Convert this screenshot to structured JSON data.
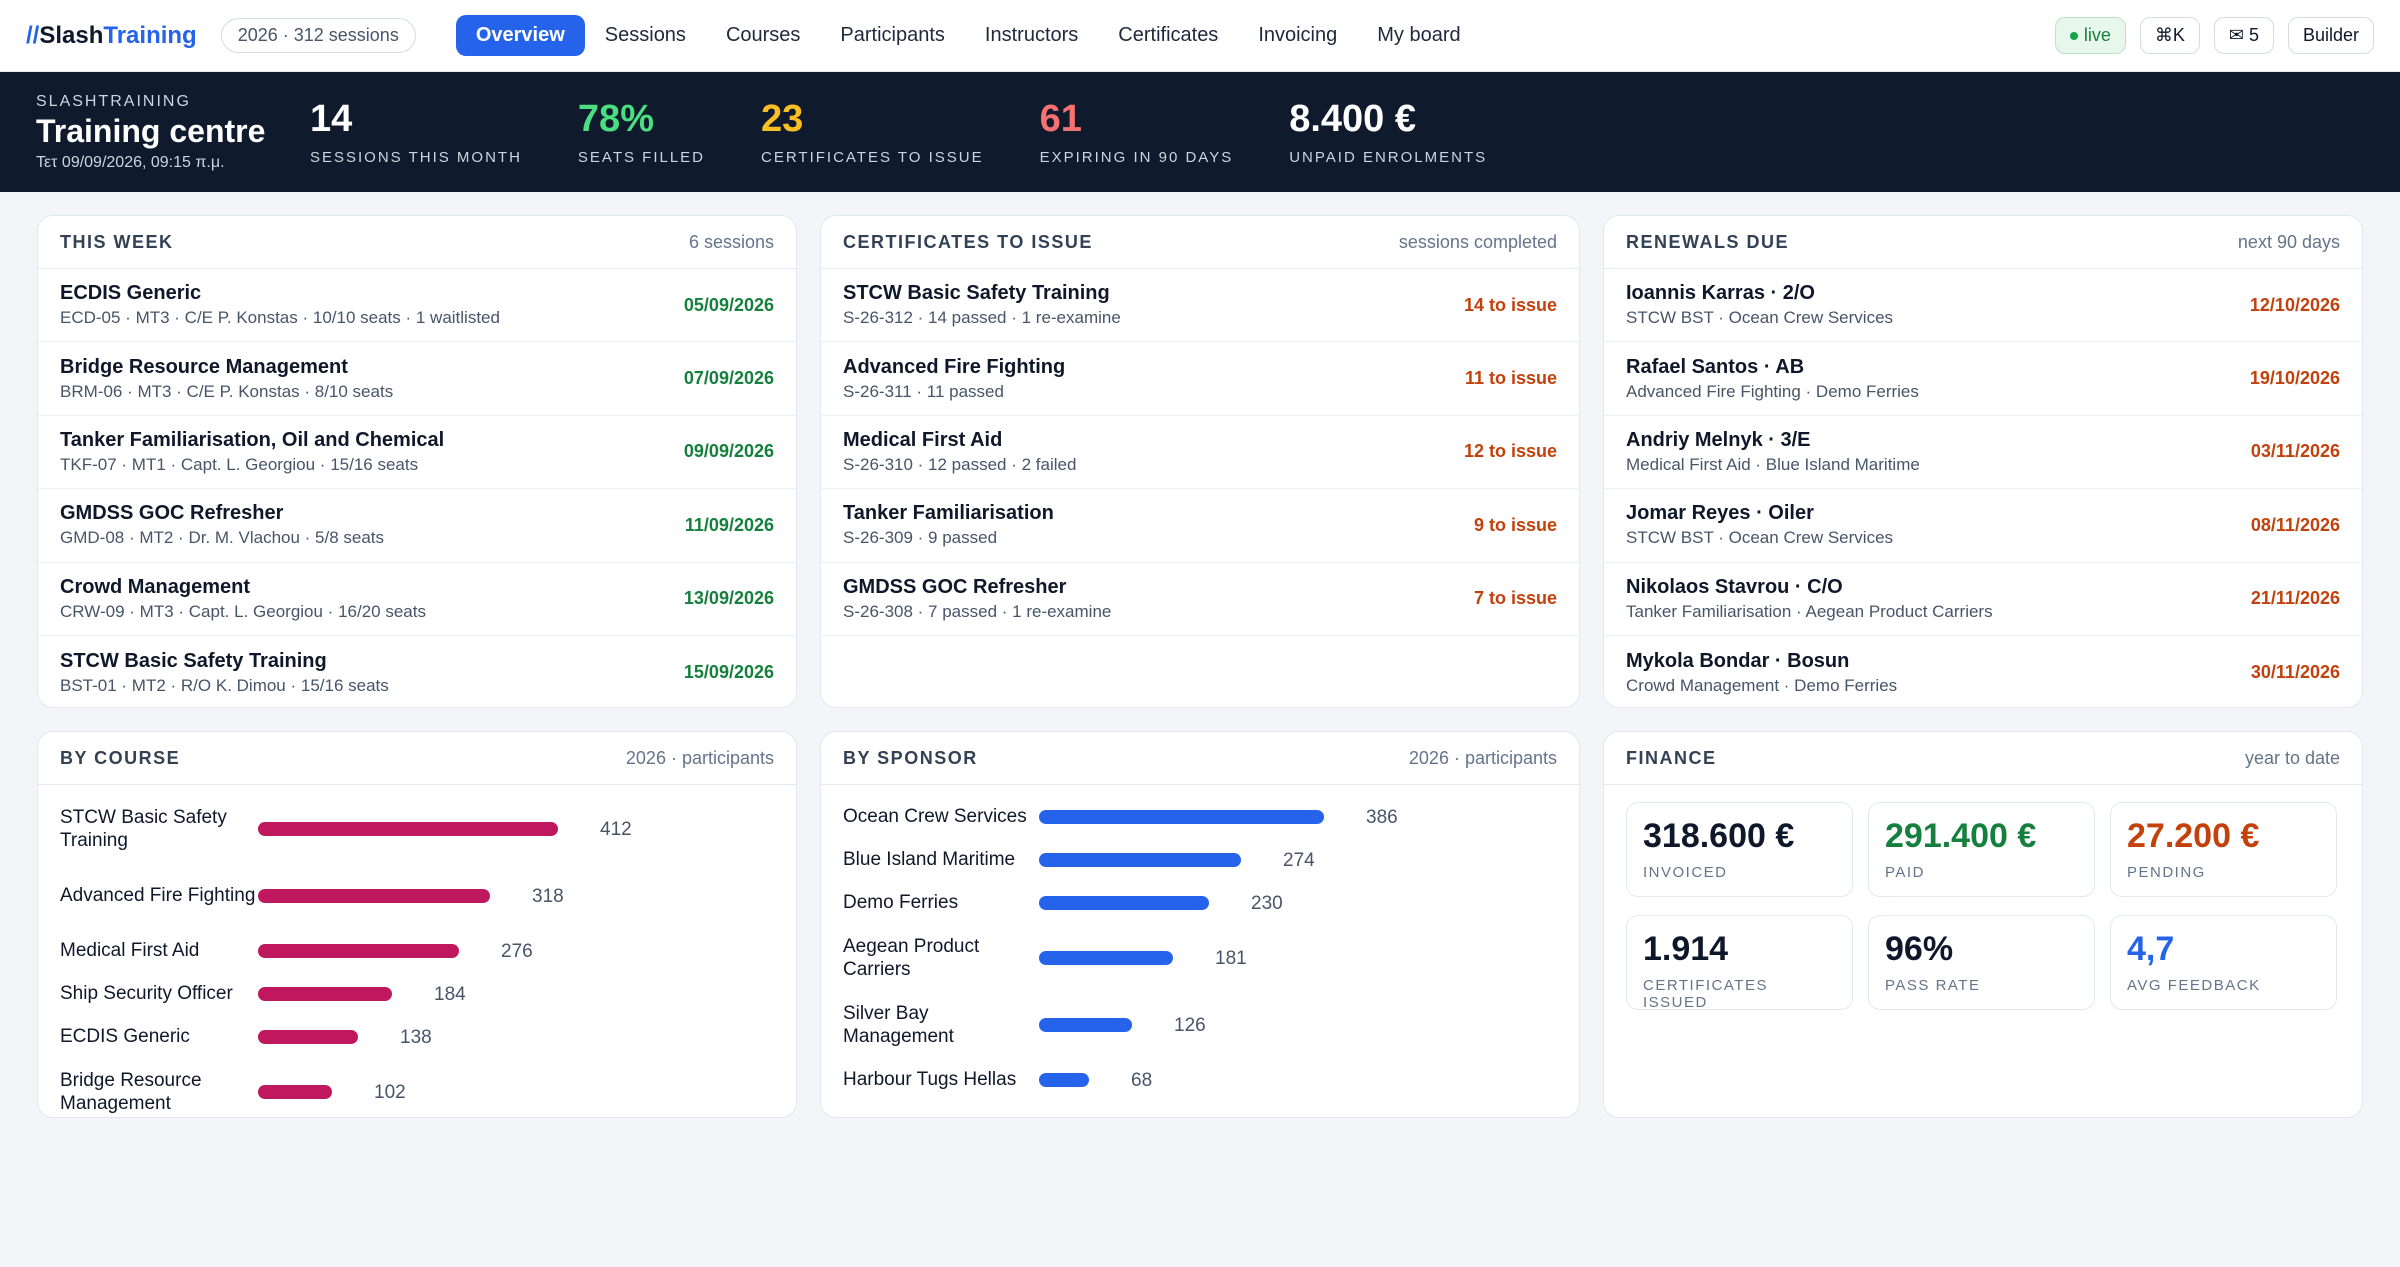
{
  "app": {
    "logo_slashes": "//",
    "logo_main": "Slash",
    "logo_accent": "Training",
    "year_pill": "2026 · 312 sessions"
  },
  "nav": {
    "items": [
      "Overview",
      "Sessions",
      "Courses",
      "Participants",
      "Instructors",
      "Certificates",
      "Invoicing",
      "My board"
    ],
    "live": "live",
    "shortcut": "⌘K",
    "messages": "✉ 5",
    "builder": "Builder"
  },
  "hero": {
    "kicker": "SLASHTRAINING",
    "title": "Training centre",
    "date": "Τετ 09/09/2026, 09:15 π.μ.",
    "kpis": [
      {
        "value": "14",
        "label": "SESSIONS THIS MONTH",
        "color": "#ffffff"
      },
      {
        "value": "78%",
        "label": "SEATS FILLED",
        "color": "#4ade80"
      },
      {
        "value": "23",
        "label": "CERTIFICATES TO ISSUE",
        "color": "#fbbf24"
      },
      {
        "value": "61",
        "label": "EXPIRING IN 90 DAYS",
        "color": "#f87171"
      },
      {
        "value": "8.400 €",
        "label": "UNPAID ENROLMENTS",
        "color": "#ffffff"
      }
    ]
  },
  "this_week": {
    "title": "THIS WEEK",
    "meta": "6 sessions",
    "rows": [
      {
        "name": "ECDIS Generic",
        "sub": "ECD-05 · MT3 · C/E P. Konstas · 10/10 seats · 1 waitlisted",
        "right": "05/09/2026"
      },
      {
        "name": "Bridge Resource Management",
        "sub": "BRM-06 · MT3 · C/E P. Konstas · 8/10 seats",
        "right": "07/09/2026"
      },
      {
        "name": "Tanker Familiarisation, Oil and Chemical",
        "sub": "TKF-07 · MT1 · Capt. L. Georgiou · 15/16 seats",
        "right": "09/09/2026"
      },
      {
        "name": "GMDSS GOC Refresher",
        "sub": "GMD-08 · MT2 · Dr. M. Vlachou · 5/8 seats",
        "right": "11/09/2026"
      },
      {
        "name": "Crowd Management",
        "sub": "CRW-09 · MT3 · Capt. L. Georgiou · 16/20 seats",
        "right": "13/09/2026"
      },
      {
        "name": "STCW Basic Safety Training",
        "sub": "BST-01 · MT2 · R/O K. Dimou · 15/16 seats",
        "right": "15/09/2026"
      }
    ]
  },
  "certificates": {
    "title": "CERTIFICATES TO ISSUE",
    "meta": "sessions completed",
    "rows": [
      {
        "name": "STCW Basic Safety Training",
        "sub": "S-26-312 · 14 passed · 1 re-examine",
        "right": "14 to issue"
      },
      {
        "name": "Advanced Fire Fighting",
        "sub": "S-26-311 · 11 passed",
        "right": "11 to issue"
      },
      {
        "name": "Medical First Aid",
        "sub": "S-26-310 · 12 passed · 2 failed",
        "right": "12 to issue"
      },
      {
        "name": "Tanker Familiarisation",
        "sub": "S-26-309 · 9 passed",
        "right": "9 to issue"
      },
      {
        "name": "GMDSS GOC Refresher",
        "sub": "S-26-308 · 7 passed · 1 re-examine",
        "right": "7 to issue"
      }
    ]
  },
  "renewals": {
    "title": "RENEWALS DUE",
    "meta": "next 90 days",
    "rows": [
      {
        "name": "Ioannis Karras · 2/O",
        "sub": "STCW BST · Ocean Crew Services",
        "right": "12/10/2026"
      },
      {
        "name": "Rafael Santos · AB",
        "sub": "Advanced Fire Fighting · Demo Ferries",
        "right": "19/10/2026"
      },
      {
        "name": "Andriy Melnyk · 3/E",
        "sub": "Medical First Aid · Blue Island Maritime",
        "right": "03/11/2026"
      },
      {
        "name": "Jomar Reyes · Oiler",
        "sub": "STCW BST · Ocean Crew Services",
        "right": "08/11/2026"
      },
      {
        "name": "Nikolaos Stavrou · C/O",
        "sub": "Tanker Familiarisation · Aegean Product Carriers",
        "right": "21/11/2026"
      },
      {
        "name": "Mykola Bondar · Bosun",
        "sub": "Crowd Management · Demo Ferries",
        "right": "30/11/2026"
      }
    ]
  },
  "chart_data": [
    {
      "type": "bar",
      "title": "BY COURSE",
      "subtitle": "2026 · participants",
      "categories": [
        "STCW Basic Safety Training",
        "Advanced Fire Fighting",
        "Medical First Aid",
        "Ship Security Officer",
        "ECDIS Generic",
        "Bridge Resource Management"
      ],
      "values": [
        412,
        318,
        276,
        184,
        138,
        102
      ],
      "color": "#c0185e"
    },
    {
      "type": "bar",
      "title": "BY SPONSOR",
      "subtitle": "2026 · participants",
      "categories": [
        "Ocean Crew Services",
        "Blue Island Maritime",
        "Demo Ferries",
        "Aegean Product Carriers",
        "Silver Bay Management",
        "Harbour Tugs Hellas"
      ],
      "values": [
        386,
        274,
        230,
        181,
        126,
        68
      ],
      "color": "#2563eb"
    }
  ],
  "finance": {
    "title": "FINANCE",
    "meta": "year to date",
    "boxes": [
      {
        "value": "318.600 €",
        "label": "INVOICED"
      },
      {
        "value": "291.400 €",
        "label": "PAID"
      },
      {
        "value": "27.200 €",
        "label": "PENDING"
      },
      {
        "value": "1.914",
        "label": "CERTIFICATES ISSUED"
      },
      {
        "value": "96%",
        "label": "PASS RATE"
      },
      {
        "value": "4,7",
        "label": "AVG FEEDBACK"
      }
    ]
  }
}
